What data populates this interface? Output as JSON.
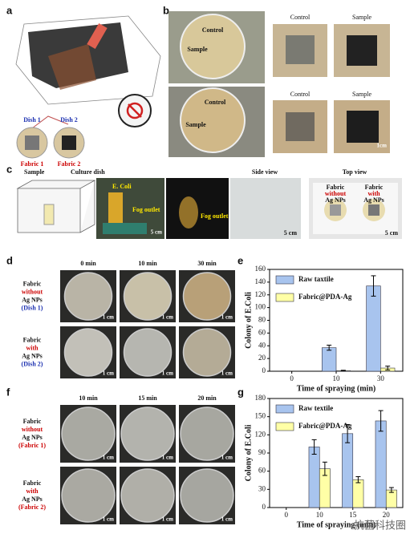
{
  "panel_labels": [
    "a",
    "b",
    "c",
    "d",
    "e",
    "f",
    "g"
  ],
  "panel_a": {
    "dish_labels": [
      "Dish 1",
      "Dish 2"
    ],
    "fabric_labels": [
      "Fabric 1",
      "Fabric 2"
    ]
  },
  "panel_b": {
    "column_headers": [
      "Control",
      "Sample"
    ],
    "dish_labels": [
      "Control",
      "Sample"
    ],
    "scale": "1cm"
  },
  "panel_c": {
    "labels": {
      "sample": "Sample",
      "culture_dish": "Culture dish",
      "e_coli": "E. Coli",
      "fog_outlet": "Fog outlet",
      "side_view": "Side view",
      "top_view": "Top view",
      "scale": "5 cm"
    },
    "top_view_labels": [
      [
        "Fabric",
        "without",
        "Ag NPs"
      ],
      [
        "Fabric",
        "with",
        "Ag NPs"
      ]
    ]
  },
  "panel_d": {
    "column_headers": [
      "0 min",
      "10 min",
      "30 min"
    ],
    "row_labels": [
      [
        "Fabric",
        "without",
        "Ag NPs",
        "(Dish 1)"
      ],
      [
        "Fabric",
        "with",
        "Ag NPs",
        "(Dish 2)"
      ]
    ],
    "scale": "1 cm"
  },
  "panel_f": {
    "column_headers": [
      "10 min",
      "15 min",
      "20 min"
    ],
    "row_labels": [
      [
        "Fabric",
        "without",
        "Ag NPs",
        "(Fabric 1)"
      ],
      [
        "Fabric",
        "with",
        "Ag NPs",
        "(Fabric 2)"
      ]
    ],
    "scale": "1 cm"
  },
  "chart_data": [
    {
      "type": "bar",
      "xlabel": "Time of spraying (min)",
      "ylabel": "Colony of E.Coli",
      "categories": [
        "0",
        "10",
        "30"
      ],
      "series": [
        {
          "name": "Raw taxtile",
          "color": "#a8c4ee",
          "values": [
            0,
            37,
            134
          ],
          "errors": [
            0,
            4,
            16
          ]
        },
        {
          "name": "Fabric@PDA-Ag",
          "color": "#ffffa6",
          "values": [
            0,
            1,
            5
          ],
          "errors": [
            0,
            0.5,
            3
          ]
        }
      ],
      "ylim": [
        0,
        160
      ],
      "yticks": [
        0,
        20,
        40,
        60,
        80,
        100,
        120,
        140,
        160
      ],
      "legend": "upper left"
    },
    {
      "type": "bar",
      "xlabel": "Time of spraying (min)",
      "ylabel": "Colony of E.Coli",
      "categories": [
        "0",
        "10",
        "15",
        "20"
      ],
      "series": [
        {
          "name": "Raw textile",
          "color": "#a8c4ee",
          "values": [
            0,
            100,
            122,
            143
          ],
          "errors": [
            0,
            12,
            15,
            17
          ]
        },
        {
          "name": "Fabric@PDA-Ag",
          "color": "#ffffa6",
          "values": [
            0,
            64,
            46,
            29
          ],
          "errors": [
            0,
            11,
            5,
            4
          ]
        }
      ],
      "ylim": [
        0,
        180
      ],
      "yticks": [
        0,
        30,
        60,
        90,
        120,
        150,
        180
      ],
      "legend": "upper left"
    }
  ],
  "watermark": "抗菌科技圈"
}
